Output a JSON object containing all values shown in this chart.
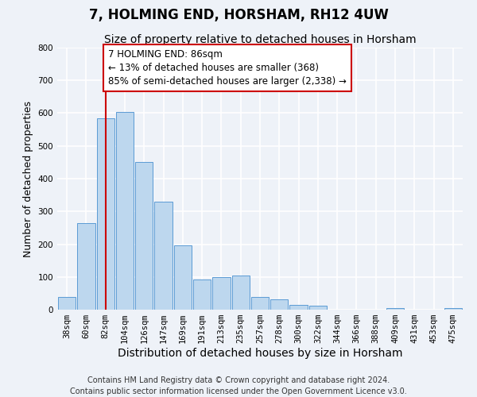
{
  "title": "7, HOLMING END, HORSHAM, RH12 4UW",
  "subtitle": "Size of property relative to detached houses in Horsham",
  "xlabel": "Distribution of detached houses by size in Horsham",
  "ylabel": "Number of detached properties",
  "categories": [
    "38sqm",
    "60sqm",
    "82sqm",
    "104sqm",
    "126sqm",
    "147sqm",
    "169sqm",
    "191sqm",
    "213sqm",
    "235sqm",
    "257sqm",
    "278sqm",
    "300sqm",
    "322sqm",
    "344sqm",
    "366sqm",
    "388sqm",
    "409sqm",
    "431sqm",
    "453sqm",
    "475sqm"
  ],
  "values": [
    38,
    265,
    585,
    603,
    450,
    330,
    196,
    91,
    100,
    104,
    38,
    32,
    14,
    12,
    0,
    1,
    0,
    5,
    0,
    0,
    5
  ],
  "bar_color": "#bdd7ee",
  "bar_edge_color": "#5b9bd5",
  "vline_x_index": 2,
  "vline_color": "#cc0000",
  "annotation_line1": "7 HOLMING END: 86sqm",
  "annotation_line2": "← 13% of detached houses are smaller (368)",
  "annotation_line3": "85% of semi-detached houses are larger (2,338) →",
  "annotation_box_color": "#ffffff",
  "annotation_box_edge_color": "#cc0000",
  "ylim": [
    0,
    800
  ],
  "yticks": [
    0,
    100,
    200,
    300,
    400,
    500,
    600,
    700,
    800
  ],
  "footer1": "Contains HM Land Registry data © Crown copyright and database right 2024.",
  "footer2": "Contains public sector information licensed under the Open Government Licence v3.0.",
  "background_color": "#eef2f8",
  "grid_color": "#ffffff",
  "title_fontsize": 12,
  "subtitle_fontsize": 10,
  "xlabel_fontsize": 10,
  "ylabel_fontsize": 9,
  "tick_fontsize": 7.5,
  "annotation_fontsize": 8.5,
  "footer_fontsize": 7
}
